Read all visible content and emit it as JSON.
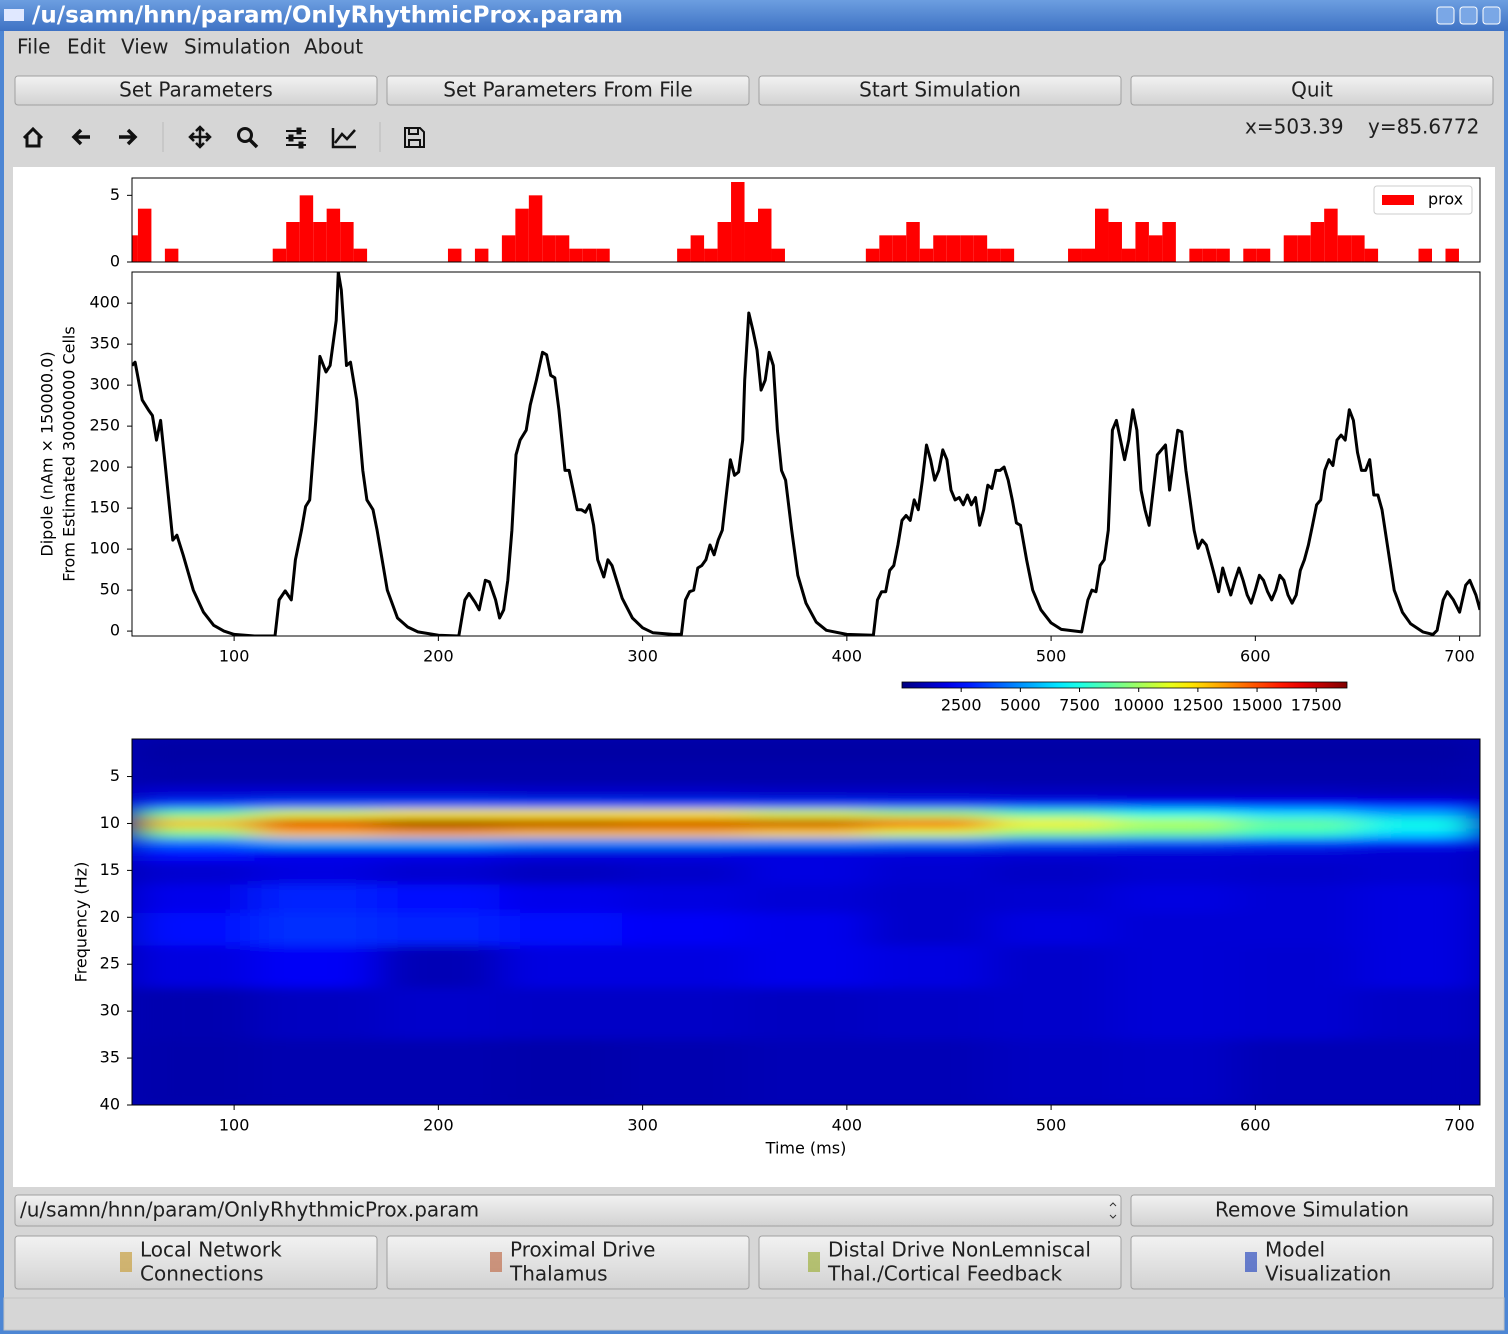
{
  "window": {
    "title": "/u/samn/hnn/param/OnlyRhythmicProx.param"
  },
  "menu": [
    "File",
    "Edit",
    "View",
    "Simulation",
    "About"
  ],
  "buttons": [
    "Set Parameters",
    "Set Parameters From File",
    "Start Simulation",
    "Quit"
  ],
  "toolbar": {
    "coords": [
      "x=503.39",
      "y=85.6772"
    ]
  },
  "chart_data": [
    {
      "type": "histogram",
      "bins": [
        46.3,
        52.9,
        59.5,
        66.1,
        72.7,
        79.3,
        85.9,
        92.5,
        99.1,
        105.7,
        112.3,
        118.9,
        125.5,
        132.1,
        138.7,
        145.3,
        151.9,
        158.5,
        165.1,
        171.7,
        178.3,
        184.9,
        191.5,
        198.1,
        204.7,
        211.3,
        217.9,
        224.5,
        231.1,
        237.7,
        244.3,
        250.9,
        257.5,
        264.1,
        270.7,
        277.3,
        283.9,
        290.5,
        297.1,
        303.7,
        310.3,
        316.9,
        323.5,
        330.1,
        336.7,
        343.3,
        349.9,
        356.5,
        363.1,
        369.7,
        376.3,
        382.9,
        389.5,
        396.1,
        402.7,
        409.3,
        415.9,
        422.5,
        429.1,
        435.7,
        442.3,
        448.9,
        455.5,
        462.1,
        468.7,
        475.3,
        481.9,
        488.5,
        495.1,
        501.7,
        508.3,
        514.9,
        521.5,
        528.1,
        534.7,
        541.3,
        547.9,
        554.5,
        561.1,
        567.7,
        574.3,
        580.9,
        587.5,
        594.1,
        600.7,
        607.3,
        613.9,
        620.5,
        627.1,
        633.7,
        640.3,
        646.9,
        653.5,
        660.1,
        666.7,
        673.3,
        679.9,
        686.5,
        693.1,
        699.7,
        706.3,
        712.9
      ],
      "series": [
        {
          "name": "prox",
          "color": "#ff0000",
          "values": [
            2,
            4,
            0,
            1,
            0,
            0,
            0,
            0,
            0,
            0,
            0,
            1,
            3,
            5,
            3,
            4,
            3,
            1,
            0,
            0,
            0,
            0,
            0,
            0,
            1,
            0,
            1,
            0,
            2,
            4,
            5,
            2,
            2,
            1,
            1,
            1,
            0,
            0,
            0,
            0,
            0,
            1,
            2,
            1,
            3,
            6,
            3,
            4,
            1,
            0,
            0,
            0,
            0,
            0,
            0,
            1,
            2,
            2,
            3,
            1,
            2,
            2,
            2,
            2,
            1,
            1,
            0,
            0,
            0,
            0,
            1,
            1,
            4,
            3,
            1,
            3,
            2,
            3,
            0,
            1,
            1,
            1,
            0,
            1,
            1,
            0,
            2,
            2,
            3,
            4,
            2,
            2,
            1,
            0,
            0,
            0,
            1,
            0,
            1,
            0,
            0
          ]
        }
      ],
      "xlim": [
        50,
        710
      ],
      "ylim": [
        0,
        6.3
      ],
      "yticks": [
        0,
        5
      ],
      "legend": "upper right"
    },
    {
      "type": "line",
      "ylabel": [
        "Dipole (nAm × 150000.0)",
        "From Estimated 30000000 Cells"
      ],
      "color": "#000000",
      "x": [
        50,
        51.5,
        55,
        58,
        60,
        62,
        64,
        66,
        70,
        72,
        75,
        80,
        85,
        90,
        95,
        100,
        110,
        120,
        122,
        125,
        128,
        130,
        133,
        135,
        137,
        140,
        142,
        145,
        147,
        150,
        151,
        152.5,
        155,
        157,
        160,
        163,
        165,
        168,
        170,
        175,
        180,
        185,
        190,
        200,
        210,
        213,
        215,
        218,
        220,
        223,
        225,
        228,
        230,
        232,
        234,
        236,
        238,
        240,
        243,
        245,
        248,
        251,
        253,
        255,
        257,
        259,
        262,
        264,
        266,
        268,
        270,
        272,
        274,
        276,
        278,
        281,
        283,
        285,
        288,
        290,
        295,
        300,
        305,
        315,
        319,
        321,
        323,
        325,
        327,
        329,
        331,
        333,
        335,
        337,
        339,
        341,
        343,
        345,
        347,
        349,
        350,
        352,
        354,
        356,
        358,
        360,
        362,
        364,
        366,
        368,
        370,
        373,
        376,
        380,
        385,
        390,
        400,
        413,
        415,
        417,
        419,
        421,
        423,
        425,
        427,
        429,
        431,
        433,
        435,
        437,
        439,
        441,
        443,
        445,
        447,
        449,
        451,
        453,
        455,
        457,
        459,
        461,
        463,
        465,
        467,
        469,
        471,
        473,
        475,
        477,
        479,
        481,
        483,
        485,
        488,
        491,
        495,
        500,
        505,
        515,
        518,
        520,
        522,
        524,
        526,
        528,
        530,
        532,
        534,
        536,
        538,
        540,
        542,
        544,
        546,
        548,
        550,
        552,
        554,
        556,
        558,
        560,
        562,
        564,
        566,
        568,
        570,
        572,
        574,
        576,
        578,
        580,
        582,
        584,
        586,
        588,
        590,
        592,
        594,
        596,
        598,
        600,
        602,
        604,
        606,
        608,
        610,
        612,
        614,
        616,
        618,
        620,
        622,
        624,
        626,
        628,
        630,
        632,
        634,
        636,
        638,
        640,
        642,
        644,
        646,
        648,
        650,
        652,
        654,
        656,
        658,
        660,
        662,
        665,
        668,
        672,
        676,
        682,
        687,
        689,
        692,
        694,
        697,
        700,
        703,
        705,
        708,
        710
      ],
      "values": [
        324,
        328,
        282,
        270,
        263,
        233,
        257,
        209,
        111,
        117,
        93,
        50,
        23,
        7,
        0,
        -4,
        -6,
        -6,
        38,
        49,
        38,
        87,
        123,
        152,
        160,
        257,
        335,
        316,
        324,
        379,
        438,
        416,
        324,
        328,
        282,
        196,
        160,
        148,
        123,
        50,
        16,
        5,
        -1,
        -5,
        -6,
        38,
        46,
        35,
        26,
        62,
        60,
        38,
        16,
        26,
        62,
        123,
        215,
        233,
        245,
        276,
        306,
        340,
        337,
        312,
        309,
        270,
        196,
        196,
        172,
        148,
        148,
        145,
        154,
        129,
        87,
        66,
        87,
        80,
        56,
        40,
        16,
        4,
        -2,
        -4,
        -4,
        38,
        48,
        50,
        77,
        80,
        87,
        105,
        93,
        111,
        123,
        166,
        209,
        190,
        194,
        233,
        306,
        388,
        367,
        343,
        294,
        306,
        340,
        324,
        245,
        196,
        184,
        123,
        68,
        34,
        11,
        1,
        -4,
        -5,
        38,
        48,
        48,
        74,
        80,
        105,
        135,
        141,
        135,
        160,
        148,
        184,
        227,
        209,
        184,
        196,
        221,
        209,
        172,
        160,
        163,
        154,
        166,
        154,
        163,
        129,
        148,
        178,
        174,
        196,
        196,
        200,
        184,
        160,
        132,
        129,
        87,
        50,
        26,
        10,
        2,
        -1,
        38,
        50,
        48,
        80,
        87,
        123,
        245,
        257,
        233,
        209,
        233,
        270,
        245,
        172,
        148,
        129,
        172,
        215,
        221,
        227,
        172,
        209,
        245,
        243,
        196,
        160,
        123,
        101,
        111,
        105,
        87,
        68,
        48,
        77,
        60,
        44,
        62,
        77,
        62,
        44,
        34,
        50,
        68,
        62,
        48,
        38,
        50,
        68,
        62,
        44,
        34,
        44,
        74,
        87,
        105,
        129,
        154,
        160,
        196,
        209,
        202,
        233,
        239,
        233,
        270,
        257,
        218,
        196,
        196,
        209,
        166,
        166,
        148,
        99,
        50,
        23,
        9,
        -1,
        -4,
        1,
        38,
        48,
        38,
        23,
        56,
        62,
        44,
        26
      ],
      "xlim": [
        50,
        710
      ],
      "ylim": [
        -6,
        438
      ],
      "xticks": [
        100,
        200,
        300,
        400,
        500,
        600,
        700
      ],
      "yticks": [
        0,
        50,
        100,
        150,
        200,
        250,
        300,
        350,
        400
      ]
    },
    {
      "type": "heatmap",
      "xlabel": "Time (ms)",
      "ylabel": "Frequency (Hz)",
      "x": [
        80,
        140,
        200,
        260,
        320,
        380,
        440,
        500,
        560,
        620,
        680
      ],
      "y": [
        2,
        5,
        7,
        8,
        9,
        10,
        11,
        12,
        13,
        15,
        18,
        21,
        25,
        30,
        36
      ],
      "z": [
        [
          700,
          700,
          700,
          700,
          700,
          700,
          700,
          700,
          700,
          700,
          700
        ],
        [
          800,
          800,
          800,
          800,
          800,
          800,
          800,
          800,
          800,
          800,
          800
        ],
        [
          1500,
          1500,
          1500,
          1400,
          1400,
          1300,
          1300,
          1200,
          1200,
          1200,
          1100
        ],
        [
          3500,
          3800,
          3800,
          3600,
          3500,
          3400,
          3200,
          3000,
          2800,
          2600,
          2400
        ],
        [
          9000,
          11000,
          12000,
          12000,
          12000,
          11000,
          10000,
          8500,
          7500,
          6500,
          5500
        ],
        [
          13000,
          17000,
          18500,
          18000,
          17500,
          17500,
          15000,
          12000,
          10500,
          9000,
          7500
        ],
        [
          9500,
          13000,
          13500,
          13000,
          13000,
          12500,
          11000,
          9500,
          9000,
          8000,
          6500
        ],
        [
          4500,
          5500,
          5500,
          5000,
          5000,
          4800,
          4500,
          4000,
          3800,
          3500,
          3000
        ],
        [
          2500,
          2000,
          2000,
          1800,
          1800,
          1800,
          1700,
          1600,
          1600,
          1600,
          1500
        ],
        [
          1500,
          1800,
          1500,
          1200,
          1400,
          1800,
          1500,
          1300,
          1500,
          1400,
          1500
        ],
        [
          2000,
          3000,
          2500,
          2000,
          1800,
          1600,
          1400,
          1500,
          1800,
          1600,
          1800
        ],
        [
          2500,
          3200,
          3000,
          2500,
          2200,
          2000,
          1400,
          1800,
          1600,
          1600,
          1800
        ],
        [
          1800,
          2200,
          1000,
          1800,
          1800,
          2000,
          1800,
          1400,
          1600,
          1500,
          1800
        ],
        [
          900,
          1200,
          1400,
          1300,
          1300,
          1200,
          1300,
          1400,
          1600,
          1500,
          1300
        ],
        [
          800,
          900,
          900,
          800,
          900,
          1000,
          1000,
          1200,
          1300,
          1000,
          1000
        ]
      ],
      "xlim": [
        50,
        710
      ],
      "ylim": [
        40,
        1
      ],
      "xticks": [
        100,
        200,
        300,
        400,
        500,
        600,
        700
      ],
      "yticks": [
        5,
        10,
        15,
        20,
        25,
        30,
        35,
        40
      ],
      "colormap": "jet",
      "colorbar": {
        "zlim": [
          0,
          18800
        ],
        "ticks": [
          2500,
          5000,
          7500,
          10000,
          12500,
          15000,
          17500
        ]
      }
    }
  ],
  "footer": {
    "file_select": "/u/samn/hnn/param/OnlyRhythmicProx.param",
    "remove_button": "Remove Simulation",
    "panels": [
      [
        "Local Network",
        "Connections"
      ],
      [
        "Proximal Drive",
        "Thalamus"
      ],
      [
        "Distal Drive NonLemniscal",
        "Thal./Cortical Feedback"
      ],
      [
        "Model",
        "Visualization"
      ]
    ]
  }
}
